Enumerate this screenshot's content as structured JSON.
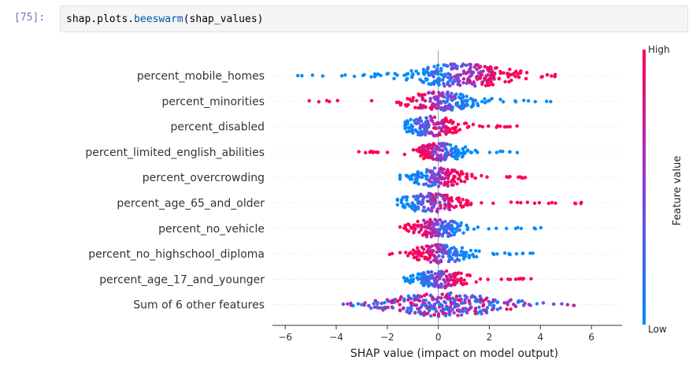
{
  "cell": {
    "prompt": "[75]:",
    "code_parts": [
      "shap",
      ".",
      "plots",
      ".",
      "beeswarm",
      "(shap_values)"
    ]
  },
  "chart_data": {
    "type": "scatter",
    "subtype": "beeswarm",
    "xlabel": "SHAP value (impact on model output)",
    "xlim": [
      -6.5,
      7.2
    ],
    "xticks": [
      -6,
      -4,
      -2,
      0,
      2,
      4,
      6
    ],
    "xtick_labels": [
      "−6",
      "−4",
      "−2",
      "0",
      "2",
      "4",
      "6"
    ],
    "colorbar": {
      "label": "Feature value",
      "high": "High",
      "low": "Low",
      "high_color": "#ff0052",
      "low_color": "#008bfb"
    },
    "features": [
      {
        "name": "percent_mobile_homes",
        "min": -5.9,
        "max": 5.2,
        "center": 0.9,
        "spread": 1.1,
        "width": 15,
        "n": 260,
        "high_side": "right"
      },
      {
        "name": "percent_minorities",
        "min": -5.1,
        "max": 4.7,
        "center": 0.1,
        "spread": 0.8,
        "width": 12,
        "n": 170,
        "high_side": "left"
      },
      {
        "name": "percent_disabled",
        "min": -1.3,
        "max": 3.1,
        "center": -0.3,
        "spread": 0.6,
        "width": 13,
        "n": 150,
        "high_side": "right"
      },
      {
        "name": "percent_limited_english_abilities",
        "min": -3.8,
        "max": 3.1,
        "center": 0.1,
        "spread": 0.6,
        "width": 11,
        "n": 160,
        "high_side": "left"
      },
      {
        "name": "percent_overcrowding",
        "min": -1.5,
        "max": 3.8,
        "center": 0.0,
        "spread": 0.6,
        "width": 12,
        "n": 150,
        "high_side": "right"
      },
      {
        "name": "percent_age_65_and_older",
        "min": -1.6,
        "max": 5.7,
        "center": -0.3,
        "spread": 0.7,
        "width": 12,
        "n": 150,
        "high_side": "right"
      },
      {
        "name": "percent_no_vehicle",
        "min": -1.5,
        "max": 4.1,
        "center": -0.1,
        "spread": 0.6,
        "width": 12,
        "n": 150,
        "high_side": "left"
      },
      {
        "name": "percent_no_highschool_diploma",
        "min": -2.2,
        "max": 4.1,
        "center": 0.1,
        "spread": 0.6,
        "width": 12,
        "n": 150,
        "high_side": "left"
      },
      {
        "name": "percent_age_17_and_younger",
        "min": -1.6,
        "max": 3.8,
        "center": 0.1,
        "spread": 0.6,
        "width": 11,
        "n": 150,
        "high_side": "right"
      },
      {
        "name": "Sum of 6 other features",
        "min": -3.8,
        "max": 6.7,
        "center": 0.3,
        "spread": 1.3,
        "width": 15,
        "n": 300,
        "high_side": "mixed"
      }
    ]
  }
}
